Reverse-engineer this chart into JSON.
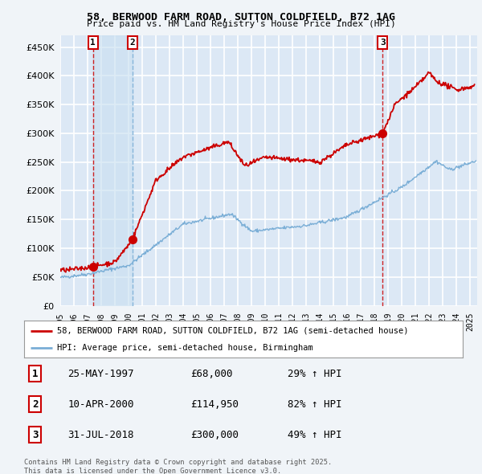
{
  "title": "58, BERWOOD FARM ROAD, SUTTON COLDFIELD, B72 1AG",
  "subtitle": "Price paid vs. HM Land Registry's House Price Index (HPI)",
  "background_color": "#f0f4f8",
  "plot_bg_color": "#dce8f5",
  "ylim": [
    0,
    470000
  ],
  "yticks": [
    0,
    50000,
    100000,
    150000,
    200000,
    250000,
    300000,
    350000,
    400000,
    450000
  ],
  "ytick_labels": [
    "£0",
    "£50K",
    "£100K",
    "£150K",
    "£200K",
    "£250K",
    "£300K",
    "£350K",
    "£400K",
    "£450K"
  ],
  "xlim_start": 1995.0,
  "xlim_end": 2025.5,
  "sale_dates": [
    1997.39,
    2000.27,
    2018.58
  ],
  "sale_prices": [
    68000,
    114950,
    300000
  ],
  "sale_labels": [
    "1",
    "2",
    "3"
  ],
  "legend_line1": "58, BERWOOD FARM ROAD, SUTTON COLDFIELD, B72 1AG (semi-detached house)",
  "legend_line2": "HPI: Average price, semi-detached house, Birmingham",
  "table_entries": [
    [
      "1",
      "25-MAY-1997",
      "£68,000",
      "29% ↑ HPI"
    ],
    [
      "2",
      "10-APR-2000",
      "£114,950",
      "82% ↑ HPI"
    ],
    [
      "3",
      "31-JUL-2018",
      "£300,000",
      "49% ↑ HPI"
    ]
  ],
  "footer": "Contains HM Land Registry data © Crown copyright and database right 2025.\nThis data is licensed under the Open Government Licence v3.0.",
  "house_color": "#cc0000",
  "hpi_color": "#7aaed6",
  "dashed_color": "#cc0000",
  "shade_color": "#c8dff0"
}
